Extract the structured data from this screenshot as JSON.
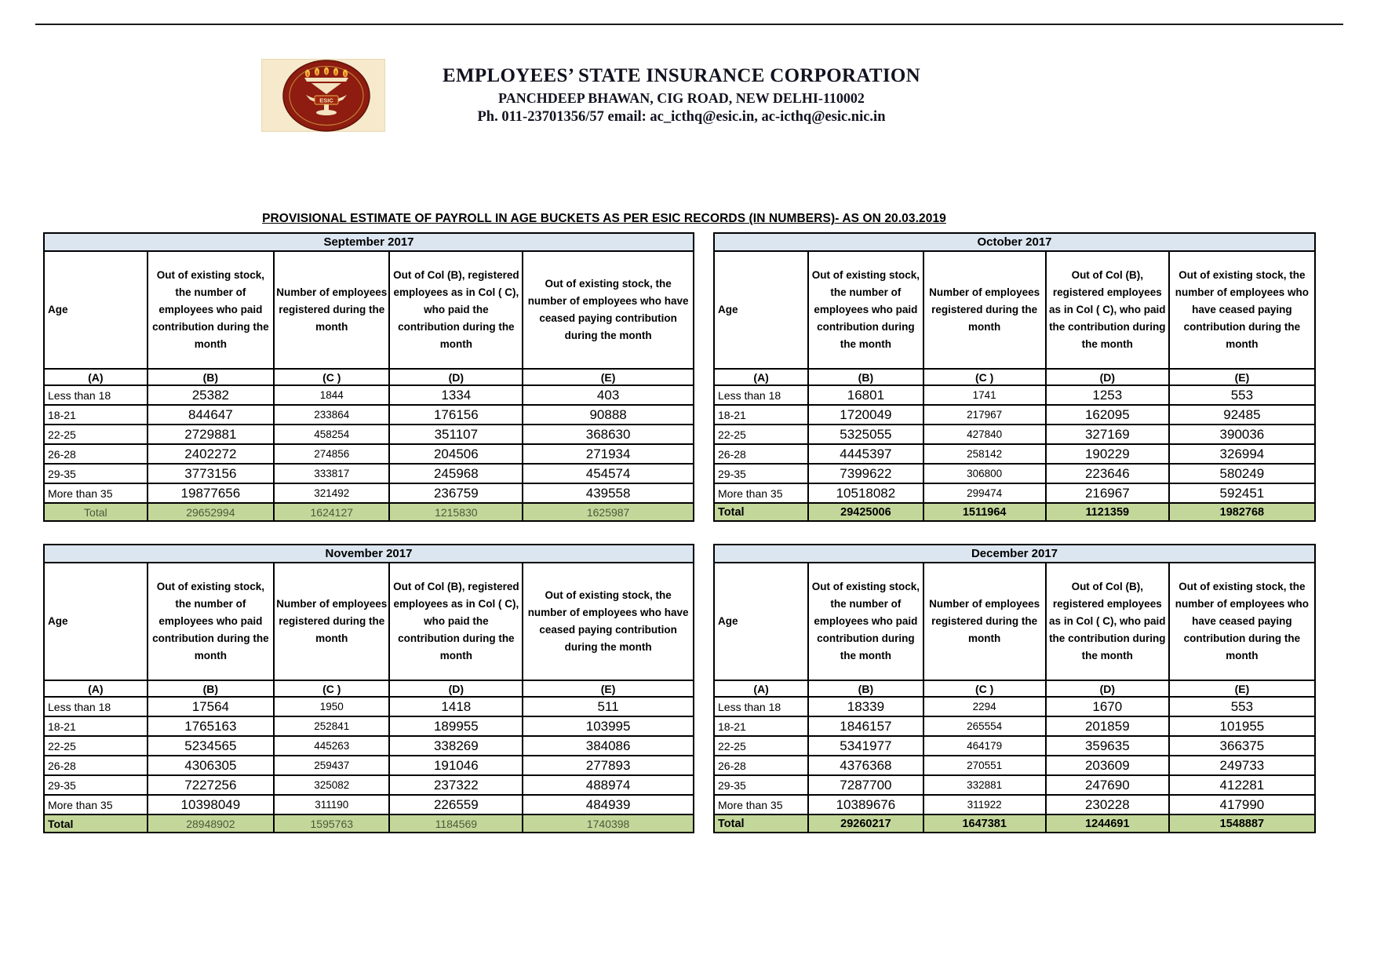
{
  "header": {
    "org_name": "EMPLOYEES’ STATE INSURANCE CORPORATION",
    "address": "PANCHDEEP BHAWAN, CIG ROAD, NEW DELHI-110002",
    "contact": "Ph. 011-23701356/57 email: ac_icthq@esic.in, ac-icthq@esic.nic.in",
    "logo_label": "ESIC"
  },
  "title": "PROVISIONAL ESTIMATE OF PAYROLL IN AGE BUCKETS AS PER ESIC RECORDS (IN NUMBERS)- AS ON 20.03.2019",
  "column_headers": {
    "age": "Age",
    "b": "Out of existing stock, the number of employees who paid contribution during the month",
    "c": "Number of employees registered during the month",
    "d": "Out of Col (B), registered employees as in Col ( C), who paid the contribution during the month",
    "e": "Out of existing stock, the number of employees who have ceased paying contribution during the month",
    "letters": [
      "(A)",
      "(B)",
      "(C )",
      "(D)",
      "(E)"
    ]
  },
  "age_groups": [
    "Less than 18",
    "18-21",
    "22-25",
    "26-28",
    "29-35",
    "More than 35"
  ],
  "tables": [
    {
      "month": "September 2017",
      "rows": [
        [
          25382,
          1844,
          1334,
          403
        ],
        [
          844647,
          233864,
          176156,
          90888
        ],
        [
          2729881,
          458254,
          351107,
          368630
        ],
        [
          2402272,
          274856,
          204506,
          271934
        ],
        [
          3773156,
          333817,
          245968,
          454574
        ],
        [
          19877656,
          321492,
          236759,
          439558
        ]
      ],
      "total_label": "Total",
      "totals": [
        29652994,
        1624127,
        1215830,
        1625987
      ]
    },
    {
      "month": "October 2017",
      "rows": [
        [
          16801,
          1741,
          1253,
          553
        ],
        [
          1720049,
          217967,
          162095,
          92485
        ],
        [
          5325055,
          427840,
          327169,
          390036
        ],
        [
          4445397,
          258142,
          190229,
          326994
        ],
        [
          7399622,
          306800,
          223646,
          580249
        ],
        [
          10518082,
          299474,
          216967,
          592451
        ]
      ],
      "total_label": "Total",
      "totals": [
        29425006,
        1511964,
        1121359,
        1982768
      ]
    },
    {
      "month": "November 2017",
      "rows": [
        [
          17564,
          1950,
          1418,
          511
        ],
        [
          1765163,
          252841,
          189955,
          103995
        ],
        [
          5234565,
          445263,
          338269,
          384086
        ],
        [
          4306305,
          259437,
          191046,
          277893
        ],
        [
          7227256,
          325082,
          237322,
          488974
        ],
        [
          10398049,
          311190,
          226559,
          484939
        ]
      ],
      "total_label": "Total",
      "totals": [
        28948902,
        1595763,
        1184569,
        1740398
      ]
    },
    {
      "month": "December 2017",
      "rows": [
        [
          18339,
          2294,
          1670,
          553
        ],
        [
          1846157,
          265554,
          201859,
          101955
        ],
        [
          5341977,
          464179,
          359635,
          366375
        ],
        [
          4376368,
          270551,
          203609,
          249733
        ],
        [
          7287700,
          332881,
          247690,
          412281
        ],
        [
          10389676,
          311922,
          230228,
          417990
        ]
      ],
      "total_label": "Total",
      "totals": [
        29260217,
        1647381,
        1244691,
        1548887
      ]
    }
  ],
  "colors": {
    "month_header_bg": "#dce6f1",
    "total_row_bg": "#c4d79b",
    "logo_maroon": "#8e1c10",
    "logo_cream": "#f6e9cc",
    "logo_gold": "#e9b84e",
    "flame_orange": "#e2701d"
  }
}
